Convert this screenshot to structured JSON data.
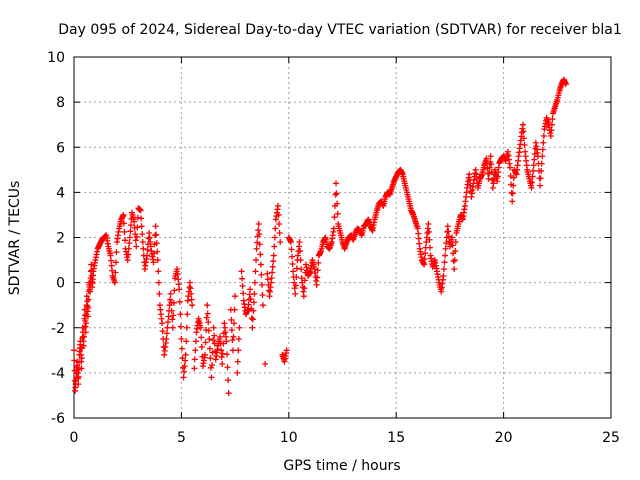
{
  "chart_data": {
    "type": "scatter",
    "title": "Day 095 of 2024, Sidereal Day-to-day VTEC variation (SDTVAR) for receiver bla1",
    "xlabel": "GPS time / hours",
    "ylabel": "SDTVAR / TECUs",
    "xlim": [
      0,
      25
    ],
    "ylim": [
      -6,
      10
    ],
    "xticks": [
      0,
      5,
      10,
      15,
      20,
      25
    ],
    "yticks": [
      -6,
      -4,
      -2,
      0,
      2,
      4,
      6,
      8,
      10
    ],
    "xtick_labels": [
      "0",
      "5",
      "10",
      "15",
      "20",
      "25"
    ],
    "ytick_labels": [
      "-6",
      "-4",
      "-2",
      "0",
      "2",
      "4",
      "6",
      "8",
      "10"
    ],
    "grid": true,
    "marker": "plus",
    "color": "#ff0000",
    "series": [
      {
        "name": "bla1",
        "points": [
          [
            0.0,
            -3.0
          ],
          [
            0.05,
            -4.8
          ],
          [
            0.1,
            -4.2
          ],
          [
            0.15,
            -3.5
          ],
          [
            0.2,
            -4.5
          ],
          [
            0.25,
            -3.2
          ],
          [
            0.3,
            -2.6
          ],
          [
            0.35,
            -3.8
          ],
          [
            0.4,
            -2.0
          ],
          [
            0.45,
            -2.8
          ],
          [
            0.5,
            -1.2
          ],
          [
            0.55,
            -2.2
          ],
          [
            0.6,
            -0.6
          ],
          [
            0.65,
            -1.5
          ],
          [
            0.7,
            0.0
          ],
          [
            0.75,
            -0.4
          ],
          [
            0.8,
            0.8
          ],
          [
            0.85,
            -0.2
          ],
          [
            0.9,
            0.5
          ],
          [
            1.0,
            1.0
          ],
          [
            1.1,
            1.5
          ],
          [
            1.2,
            1.7
          ],
          [
            1.3,
            1.9
          ],
          [
            1.4,
            2.0
          ],
          [
            1.5,
            2.1
          ],
          [
            1.6,
            1.6
          ],
          [
            1.7,
            1.2
          ],
          [
            1.8,
            0.3
          ],
          [
            1.9,
            0.0
          ],
          [
            2.0,
            1.8
          ],
          [
            2.1,
            2.4
          ],
          [
            2.2,
            2.8
          ],
          [
            2.3,
            3.0
          ],
          [
            2.4,
            1.5
          ],
          [
            2.5,
            1.0
          ],
          [
            2.6,
            2.0
          ],
          [
            2.7,
            3.1
          ],
          [
            2.8,
            2.7
          ],
          [
            2.9,
            1.6
          ],
          [
            3.0,
            3.3
          ],
          [
            3.1,
            3.2
          ],
          [
            3.2,
            1.8
          ],
          [
            3.3,
            0.6
          ],
          [
            3.4,
            1.2
          ],
          [
            3.5,
            2.2
          ],
          [
            3.6,
            1.4
          ],
          [
            3.7,
            0.9
          ],
          [
            3.8,
            2.5
          ],
          [
            3.9,
            1.0
          ],
          [
            4.0,
            -1.0
          ],
          [
            4.1,
            -1.8
          ],
          [
            4.2,
            -3.2
          ],
          [
            4.3,
            -2.5
          ],
          [
            4.4,
            -1.5
          ],
          [
            4.5,
            -0.5
          ],
          [
            4.6,
            -2.0
          ],
          [
            4.7,
            0.2
          ],
          [
            4.8,
            0.6
          ],
          [
            4.9,
            -0.3
          ],
          [
            5.0,
            -2.5
          ],
          [
            5.1,
            -4.2
          ],
          [
            5.2,
            -3.2
          ],
          [
            5.3,
            -0.8
          ],
          [
            5.4,
            0.0
          ],
          [
            5.5,
            -1.0
          ],
          [
            5.6,
            -3.8
          ],
          [
            5.7,
            -2.2
          ],
          [
            5.8,
            -1.6
          ],
          [
            5.9,
            -2.0
          ],
          [
            6.0,
            -3.7
          ],
          [
            6.1,
            -3.2
          ],
          [
            6.2,
            -1.0
          ],
          [
            6.3,
            -2.5
          ],
          [
            6.4,
            -4.2
          ],
          [
            6.5,
            -2.0
          ],
          [
            6.6,
            -3.4
          ],
          [
            6.7,
            -2.8
          ],
          [
            6.8,
            -2.4
          ],
          [
            6.9,
            -3.6
          ],
          [
            7.0,
            -1.8
          ],
          [
            7.1,
            -2.6
          ],
          [
            7.2,
            -4.9
          ],
          [
            7.3,
            -1.2
          ],
          [
            7.4,
            -3.0
          ],
          [
            7.5,
            -0.6
          ],
          [
            7.6,
            -4.0
          ],
          [
            7.7,
            -2.0
          ],
          [
            7.8,
            0.5
          ],
          [
            7.9,
            -0.8
          ],
          [
            8.0,
            -1.4
          ],
          [
            8.1,
            -1.2
          ],
          [
            8.2,
            -0.3
          ],
          [
            8.3,
            -2.0
          ],
          [
            8.4,
            -0.5
          ],
          [
            8.5,
            1.5
          ],
          [
            8.6,
            2.6
          ],
          [
            8.7,
            0.8
          ],
          [
            8.8,
            -1.0
          ],
          [
            8.9,
            -3.6
          ],
          [
            9.0,
            0.4
          ],
          [
            9.1,
            -0.6
          ],
          [
            9.2,
            0.2
          ],
          [
            9.3,
            1.2
          ],
          [
            9.4,
            2.8
          ],
          [
            9.5,
            3.4
          ],
          [
            9.6,
            1.8
          ],
          [
            9.7,
            -3.2
          ],
          [
            9.8,
            -3.5
          ],
          [
            9.9,
            -3.0
          ],
          [
            10.0,
            2.0
          ],
          [
            10.1,
            1.8
          ],
          [
            10.2,
            0.5
          ],
          [
            10.3,
            -0.5
          ],
          [
            10.4,
            1.0
          ],
          [
            10.5,
            1.8
          ],
          [
            10.6,
            0.2
          ],
          [
            10.7,
            -0.6
          ],
          [
            10.8,
            0.8
          ],
          [
            10.9,
            0.3
          ],
          [
            11.0,
            0.5
          ],
          [
            11.1,
            1.0
          ],
          [
            11.2,
            0.6
          ],
          [
            11.3,
            -0.1
          ],
          [
            11.4,
            1.2
          ],
          [
            11.5,
            1.4
          ],
          [
            11.6,
            1.8
          ],
          [
            11.7,
            2.0
          ],
          [
            11.8,
            1.6
          ],
          [
            11.9,
            1.5
          ],
          [
            12.0,
            1.8
          ],
          [
            12.1,
            2.4
          ],
          [
            12.2,
            4.4
          ],
          [
            12.3,
            2.6
          ],
          [
            12.4,
            2.2
          ],
          [
            12.5,
            1.8
          ],
          [
            12.6,
            1.5
          ],
          [
            12.7,
            1.8
          ],
          [
            12.8,
            2.0
          ],
          [
            12.9,
            2.1
          ],
          [
            13.0,
            1.9
          ],
          [
            13.1,
            2.2
          ],
          [
            13.2,
            2.4
          ],
          [
            13.3,
            2.3
          ],
          [
            13.4,
            2.1
          ],
          [
            13.5,
            2.5
          ],
          [
            13.6,
            2.6
          ],
          [
            13.7,
            2.8
          ],
          [
            13.8,
            2.5
          ],
          [
            13.9,
            2.3
          ],
          [
            14.0,
            2.8
          ],
          [
            14.1,
            3.2
          ],
          [
            14.2,
            3.5
          ],
          [
            14.3,
            3.6
          ],
          [
            14.4,
            3.4
          ],
          [
            14.5,
            3.8
          ],
          [
            14.6,
            4.0
          ],
          [
            14.7,
            3.9
          ],
          [
            14.8,
            4.2
          ],
          [
            14.9,
            4.5
          ],
          [
            15.0,
            4.7
          ],
          [
            15.1,
            4.9
          ],
          [
            15.2,
            5.0
          ],
          [
            15.3,
            4.8
          ],
          [
            15.4,
            4.4
          ],
          [
            15.5,
            4.0
          ],
          [
            15.6,
            3.6
          ],
          [
            15.7,
            3.2
          ],
          [
            15.8,
            3.0
          ],
          [
            15.9,
            2.7
          ],
          [
            16.0,
            2.4
          ],
          [
            16.1,
            1.5
          ],
          [
            16.2,
            1.0
          ],
          [
            16.3,
            0.8
          ],
          [
            16.4,
            1.8
          ],
          [
            16.5,
            2.6
          ],
          [
            16.6,
            1.2
          ],
          [
            16.7,
            0.7
          ],
          [
            16.8,
            1.0
          ],
          [
            16.9,
            0.5
          ],
          [
            17.0,
            0.0
          ],
          [
            17.1,
            -0.4
          ],
          [
            17.2,
            0.3
          ],
          [
            17.3,
            1.5
          ],
          [
            17.4,
            2.5
          ],
          [
            17.5,
            1.6
          ],
          [
            17.6,
            2.0
          ],
          [
            17.7,
            0.6
          ],
          [
            17.8,
            2.2
          ],
          [
            17.9,
            2.6
          ],
          [
            18.0,
            3.0
          ],
          [
            18.1,
            2.8
          ],
          [
            18.2,
            3.4
          ],
          [
            18.3,
            4.2
          ],
          [
            18.4,
            4.8
          ],
          [
            18.5,
            3.8
          ],
          [
            18.6,
            4.4
          ],
          [
            18.7,
            5.0
          ],
          [
            18.8,
            4.2
          ],
          [
            18.9,
            4.6
          ],
          [
            19.0,
            4.8
          ],
          [
            19.1,
            5.2
          ],
          [
            19.2,
            5.5
          ],
          [
            19.3,
            4.6
          ],
          [
            19.4,
            5.6
          ],
          [
            19.5,
            4.2
          ],
          [
            19.6,
            5.0
          ],
          [
            19.7,
            4.5
          ],
          [
            19.8,
            5.3
          ],
          [
            19.9,
            5.5
          ],
          [
            20.0,
            5.6
          ],
          [
            20.1,
            5.4
          ],
          [
            20.2,
            5.8
          ],
          [
            20.3,
            5.1
          ],
          [
            20.4,
            3.6
          ],
          [
            20.5,
            5.0
          ],
          [
            20.6,
            4.8
          ],
          [
            20.7,
            5.6
          ],
          [
            20.8,
            6.3
          ],
          [
            20.9,
            7.0
          ],
          [
            21.0,
            5.8
          ],
          [
            21.1,
            5.0
          ],
          [
            21.2,
            4.6
          ],
          [
            21.3,
            4.2
          ],
          [
            21.4,
            5.2
          ],
          [
            21.5,
            6.2
          ],
          [
            21.6,
            5.6
          ],
          [
            21.7,
            4.3
          ],
          [
            21.8,
            5.6
          ],
          [
            21.9,
            6.8
          ],
          [
            22.0,
            7.3
          ],
          [
            22.1,
            7.0
          ],
          [
            22.2,
            6.5
          ],
          [
            22.3,
            7.5
          ],
          [
            22.4,
            7.8
          ],
          [
            22.5,
            8.1
          ],
          [
            22.6,
            8.5
          ],
          [
            22.7,
            8.8
          ],
          [
            22.8,
            9.0
          ],
          [
            22.9,
            8.8
          ]
        ]
      }
    ]
  }
}
